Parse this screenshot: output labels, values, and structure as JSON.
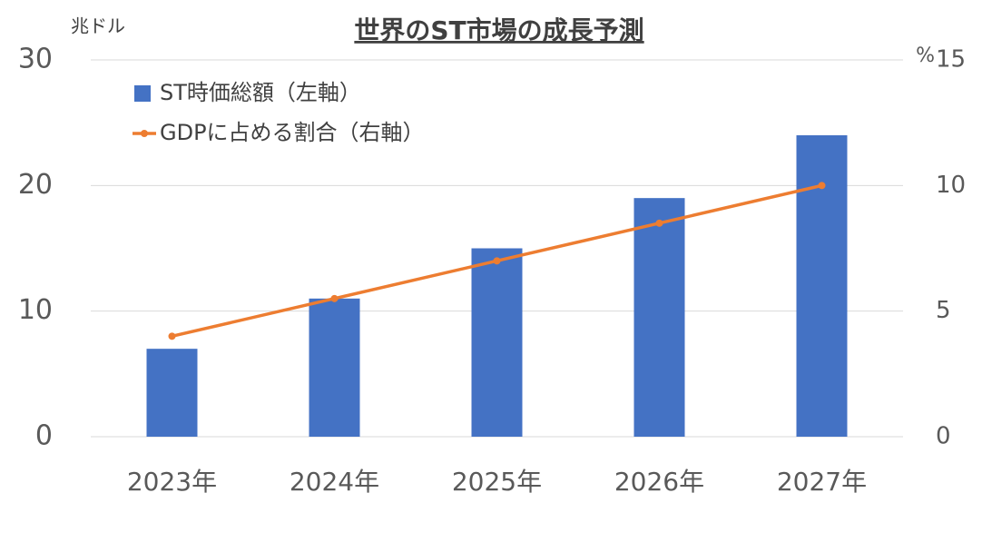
{
  "chart_data": {
    "type": "bar_line",
    "title": "世界のST市場の成長予測",
    "y_label": "兆ドル",
    "y2_label": "%",
    "categories": [
      "2023年",
      "2024年",
      "2025年",
      "2026年",
      "2027年"
    ],
    "series": [
      {
        "name": "ST時価総額（左軸）",
        "type": "bar",
        "color": "#4472c4",
        "axis": "y",
        "values": [
          7,
          11,
          15,
          19,
          24
        ]
      },
      {
        "name": "GDPに占める割合（右軸）",
        "type": "line",
        "color": "#ed7d31",
        "axis": "y2",
        "values": [
          4.0,
          5.5,
          7.0,
          8.5,
          10.0
        ]
      }
    ],
    "ylim": [
      0,
      30
    ],
    "yticks": [
      0,
      10,
      20,
      30
    ],
    "y2lim": [
      0,
      15
    ],
    "y2ticks": [
      0,
      5,
      10,
      15
    ],
    "grid": true,
    "legend": "top-left"
  }
}
